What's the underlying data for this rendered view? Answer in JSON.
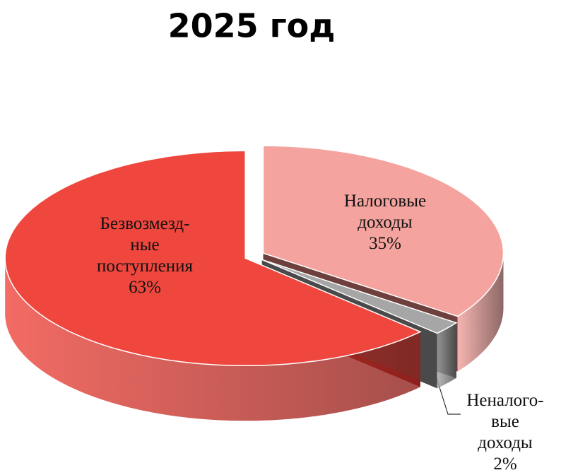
{
  "chart_data": {
    "type": "pie",
    "title": "2025 год",
    "categories": [
      "Налоговые\nдоходы",
      "Неналого-\nвые доходы",
      "Безвозмезд-\nные\nпоступления"
    ],
    "values": [
      35,
      2,
      63
    ],
    "value_labels": [
      "35%",
      "2%",
      "63%"
    ],
    "colors": [
      "#f4a39e",
      "#a6a6a6",
      "#ef463d"
    ],
    "side_colors": [
      "#6e403d",
      "#4a4a4a",
      "#8e201b"
    ]
  }
}
